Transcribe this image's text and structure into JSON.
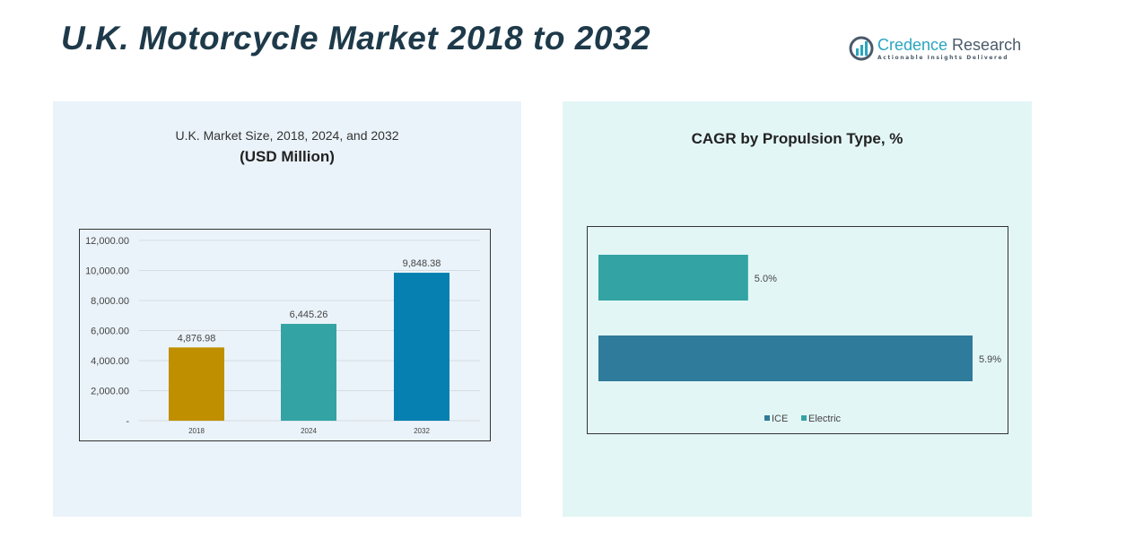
{
  "title": "U.K. Motorcycle Market 2018 to 2032",
  "logo": {
    "brand_a": "Credence",
    "brand_b": " Research",
    "tagline": "Actionable Insights Delivered"
  },
  "colors": {
    "bg_left": "#eaf3f9",
    "bg_right": "#e3f6f6",
    "title": "#1e3a4a"
  },
  "chart_data": [
    {
      "type": "bar",
      "title": "U.K. Market Size, 2018, 2024, and 2032",
      "subtitle": "(USD Million)",
      "categories": [
        "2018",
        "2024",
        "2032"
      ],
      "values": [
        4876.98,
        6445.26,
        9848.38
      ],
      "value_labels": [
        "4,876.98",
        "6,445.26",
        "9,848.38"
      ],
      "colors": [
        "#bf8f00",
        "#33a3a3",
        "#0580b0"
      ],
      "ylim": [
        0,
        12000
      ],
      "yticks": [
        0,
        2000,
        4000,
        6000,
        8000,
        10000,
        12000
      ],
      "ytick_labels": [
        "-",
        "2,000.00",
        "4,000.00",
        "6,000.00",
        "8,000.00",
        "10,000.00",
        "12,000.00"
      ],
      "grid": true
    },
    {
      "type": "bar",
      "orientation": "horizontal",
      "title": "CAGR by Propulsion Type, %",
      "categories": [
        "Electric",
        "ICE"
      ],
      "values": [
        5.0,
        5.9
      ],
      "value_labels": [
        "5.0%",
        "5.9%"
      ],
      "colors": [
        "#33a3a3",
        "#2f7b9b"
      ],
      "xlim": [
        4.4,
        6.0
      ],
      "legend": "bottom",
      "legend_entries": [
        {
          "name": "ICE",
          "color": "#2f7b9b"
        },
        {
          "name": "Electric",
          "color": "#33a3a3"
        }
      ]
    }
  ]
}
